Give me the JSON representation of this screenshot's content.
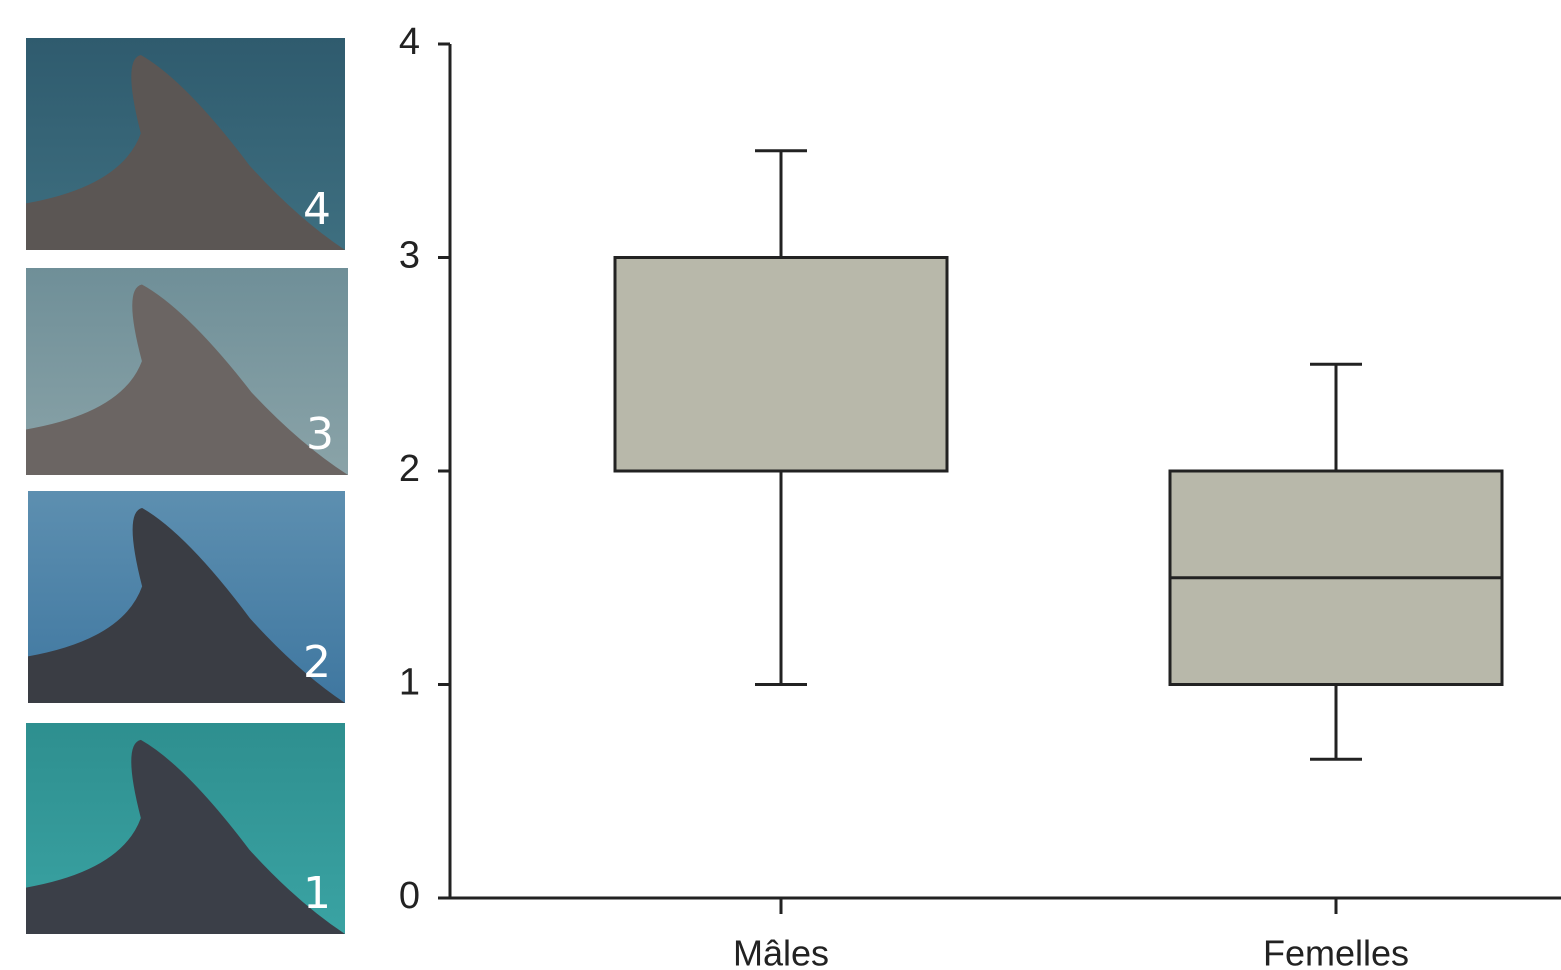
{
  "chart_data": {
    "type": "box",
    "categories": [
      "Mâles",
      "Femelles"
    ],
    "boxes": [
      {
        "min": 1,
        "q1": 2,
        "median": 3,
        "q3": 3,
        "max": 3.5
      },
      {
        "min": 0.65,
        "q1": 1,
        "median": 1.5,
        "q3": 2,
        "max": 2.5
      }
    ],
    "color": "#b8b8aa",
    "ylim": [
      0,
      4
    ],
    "yticks": [
      0,
      1,
      2,
      3,
      4
    ]
  },
  "photos": [
    "4",
    "3",
    "2",
    "1"
  ]
}
